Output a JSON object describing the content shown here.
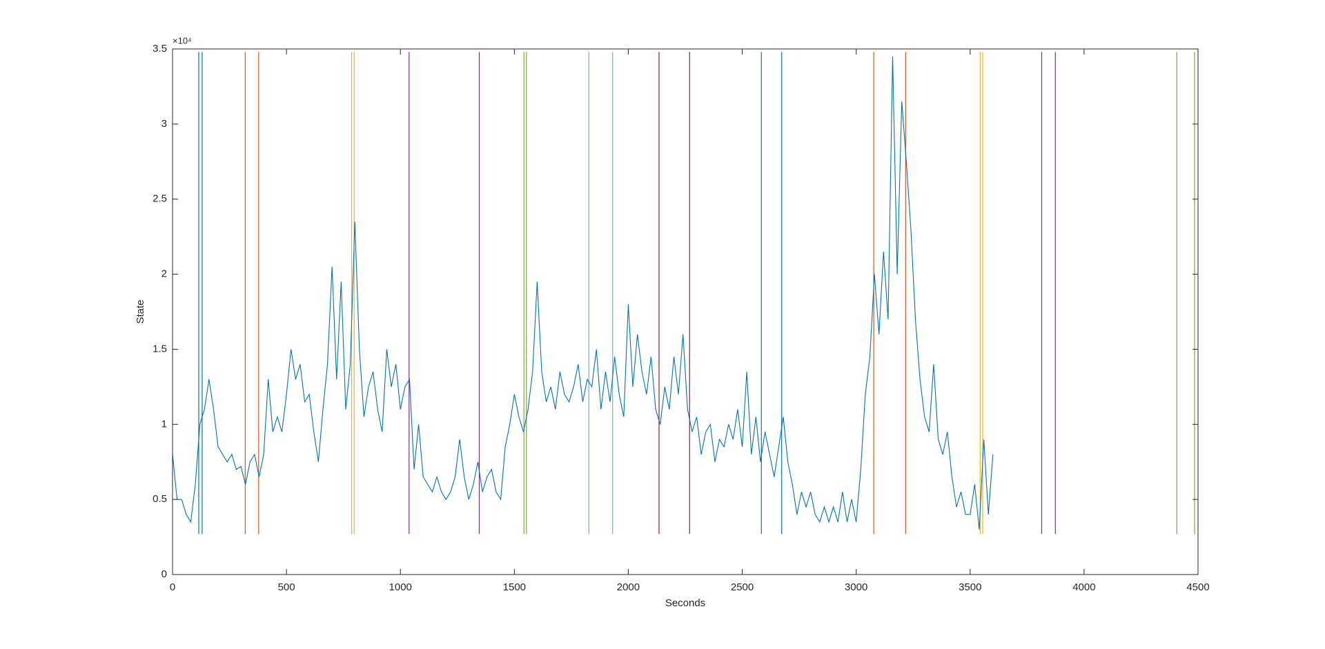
{
  "chart_data": {
    "type": "line",
    "xlabel": "Seconds",
    "ylabel": "State",
    "y_multiplier": "×10⁴",
    "color": "#0072bd",
    "xlim": [
      0,
      4500
    ],
    "xticks": [
      0,
      500,
      1000,
      1500,
      2000,
      2500,
      3000,
      3500,
      4000,
      4500
    ],
    "ylim": [
      0,
      35000
    ],
    "yticks": [
      0,
      {
        "value": 5000,
        "label": "0.5"
      },
      {
        "value": 10000,
        "label": "1"
      },
      {
        "value": 15000,
        "label": "1.5"
      },
      {
        "value": 20000,
        "label": "2"
      },
      {
        "value": 25000,
        "label": "2.5"
      },
      {
        "value": 30000,
        "label": "3"
      },
      {
        "value": 35000,
        "label": "3.5"
      }
    ],
    "x": [
      0,
      20,
      40,
      60,
      80,
      100,
      120,
      140,
      160,
      180,
      200,
      220,
      240,
      260,
      280,
      300,
      320,
      340,
      360,
      380,
      400,
      420,
      440,
      460,
      480,
      500,
      520,
      540,
      560,
      580,
      600,
      620,
      640,
      660,
      680,
      700,
      720,
      740,
      760,
      780,
      800,
      820,
      840,
      860,
      880,
      900,
      920,
      940,
      960,
      980,
      1000,
      1020,
      1040,
      1060,
      1080,
      1100,
      1120,
      1140,
      1160,
      1180,
      1200,
      1220,
      1240,
      1260,
      1280,
      1300,
      1320,
      1340,
      1360,
      1380,
      1400,
      1420,
      1440,
      1460,
      1480,
      1500,
      1520,
      1540,
      1560,
      1580,
      1600,
      1620,
      1640,
      1660,
      1680,
      1700,
      1720,
      1740,
      1760,
      1780,
      1800,
      1820,
      1840,
      1860,
      1880,
      1900,
      1920,
      1940,
      1960,
      1980,
      2000,
      2020,
      2040,
      2060,
      2080,
      2100,
      2120,
      2140,
      2160,
      2180,
      2200,
      2220,
      2240,
      2260,
      2280,
      2300,
      2320,
      2340,
      2360,
      2380,
      2400,
      2420,
      2440,
      2460,
      2480,
      2500,
      2520,
      2540,
      2560,
      2580,
      2600,
      2620,
      2640,
      2660,
      2680,
      2700,
      2720,
      2740,
      2760,
      2780,
      2800,
      2820,
      2840,
      2860,
      2880,
      2900,
      2920,
      2940,
      2960,
      2980,
      3000,
      3020,
      3040,
      3060,
      3080,
      3100,
      3120,
      3140,
      3160,
      3180,
      3200,
      3220,
      3240,
      3260,
      3280,
      3300,
      3320,
      3340,
      3360,
      3380,
      3400,
      3420,
      3440,
      3460,
      3480,
      3500,
      3520,
      3540,
      3560,
      3580,
      3600
    ],
    "values": [
      8000,
      5000,
      5000,
      4000,
      3500,
      6000,
      10000,
      11000,
      13000,
      11000,
      8500,
      8000,
      7500,
      8000,
      7000,
      7200,
      6000,
      7500,
      8000,
      6500,
      8000,
      13000,
      9500,
      10500,
      9500,
      12000,
      15000,
      13000,
      14000,
      11500,
      12000,
      9500,
      7500,
      11000,
      14000,
      20500,
      13000,
      19500,
      11000,
      14000,
      23500,
      15000,
      10500,
      12500,
      13500,
      11000,
      9500,
      15000,
      12500,
      14000,
      11000,
      12500,
      13000,
      7000,
      10000,
      6500,
      6000,
      5500,
      6500,
      5500,
      5000,
      5500,
      6500,
      9000,
      6500,
      5000,
      6000,
      7500,
      5500,
      6500,
      7000,
      5500,
      5000,
      8500,
      10000,
      12000,
      10500,
      9500,
      11000,
      13500,
      19500,
      13500,
      11500,
      12500,
      11000,
      13500,
      12000,
      11500,
      12500,
      14000,
      11500,
      13000,
      12500,
      15000,
      11000,
      13500,
      11500,
      14500,
      12000,
      10500,
      18000,
      12500,
      16000,
      13500,
      12000,
      14500,
      11000,
      10000,
      12500,
      11000,
      14500,
      12000,
      16000,
      11000,
      9500,
      10500,
      8000,
      9500,
      10000,
      7500,
      9000,
      8500,
      10000,
      9000,
      11000,
      8500,
      13500,
      8000,
      10500,
      7500,
      9500,
      8000,
      6500,
      8500,
      10500,
      7500,
      6000,
      4000,
      5500,
      4500,
      5500,
      4000,
      3500,
      4500,
      3500,
      4500,
      3500,
      5500,
      3500,
      5000,
      3500,
      7000,
      12000,
      14500,
      20000,
      16000,
      21500,
      17000,
      34500,
      20000,
      31500,
      27500,
      23000,
      17000,
      13000,
      10500,
      9500,
      14000,
      9000,
      8000,
      9500,
      6500,
      4500,
      5500,
      4000,
      4000,
      6000,
      3000,
      9000,
      4000,
      8000
    ],
    "marker_ylim": [
      2700,
      34800
    ],
    "markers": [
      {
        "color": "#0072bd",
        "x": [
          115,
          130
        ]
      },
      {
        "color": "#d95319",
        "x": [
          319,
          378
        ]
      },
      {
        "color": "#edb120",
        "x": [
          786,
          797
        ]
      },
      {
        "color": "#7e2f8e",
        "x": [
          1038,
          1346
        ]
      },
      {
        "color": "#77ac30",
        "x": [
          1542,
          1553
        ]
      },
      {
        "color": "#4dbeee",
        "x": [
          1827,
          1931
        ]
      },
      {
        "color": "#a2142f",
        "x": [
          2135,
          2269
        ]
      },
      {
        "color": "#0072bd",
        "x": [
          2584,
          2673
        ]
      },
      {
        "color": "#d95319",
        "x": [
          3077,
          3217
        ]
      },
      {
        "color": "#edb120",
        "x": [
          3544,
          3555
        ]
      },
      {
        "color": "#7e2f8e",
        "x": [
          3814,
          3874
        ]
      },
      {
        "color": "#77ac30",
        "x": [
          4407,
          4485
        ]
      }
    ]
  }
}
